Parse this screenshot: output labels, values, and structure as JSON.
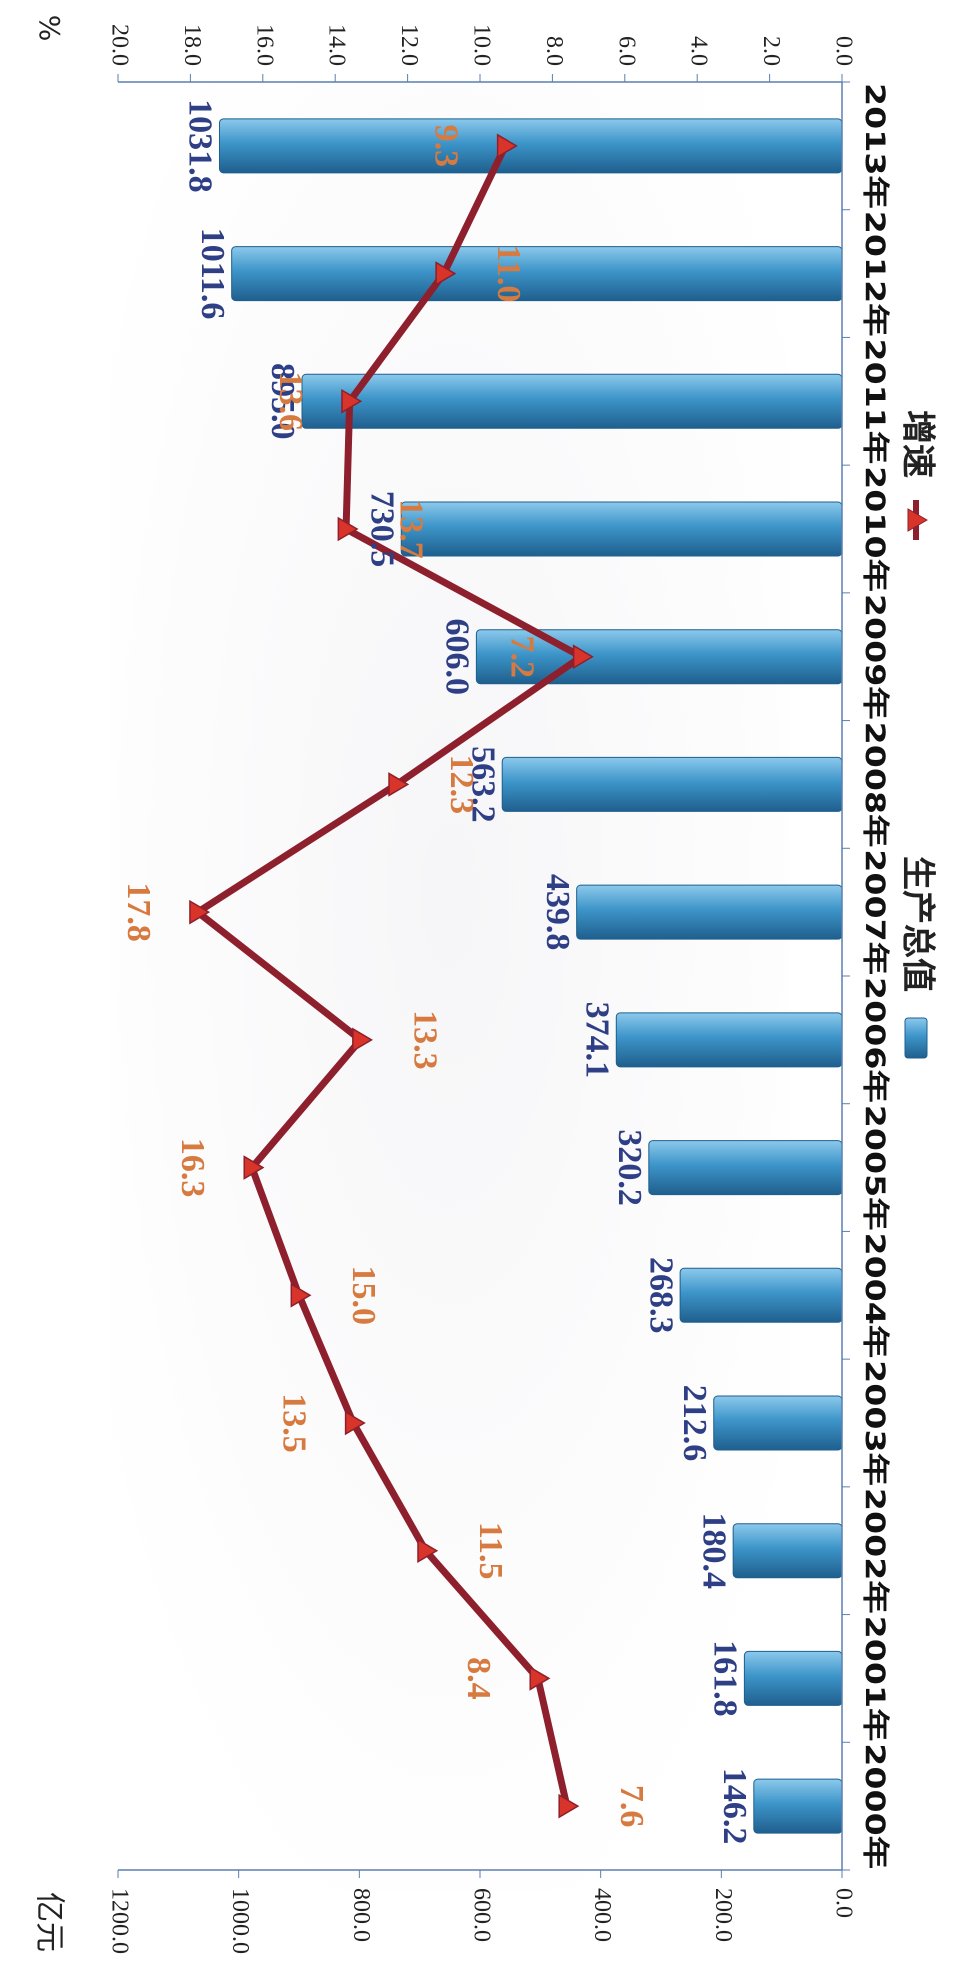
{
  "chart_data": {
    "type": "bar+line",
    "orientation": "rotated-90-clockwise",
    "categories": [
      "2000年",
      "2001年",
      "2002年",
      "2003年",
      "2004年",
      "2005年",
      "2006年",
      "2007年",
      "2008年",
      "2009年",
      "2010年",
      "2011年",
      "2012年",
      "2013年"
    ],
    "series": [
      {
        "name": "生产总值",
        "type": "bar",
        "axis": "left",
        "values": [
          146.2,
          161.8,
          180.4,
          212.6,
          268.3,
          320.2,
          374.1,
          439.8,
          563.2,
          606.0,
          730.5,
          895.0,
          1011.6,
          1031.8
        ],
        "labels": [
          "146.2",
          "161.8",
          "180.4",
          "212.6",
          "268.3",
          "320.2",
          "374.1",
          "439.8",
          "563.2",
          "606.0",
          "730.5",
          "895.0",
          "1011.6",
          "1031.8"
        ]
      },
      {
        "name": "增速",
        "type": "line",
        "axis": "right",
        "values": [
          7.6,
          8.4,
          11.5,
          13.5,
          15.0,
          16.3,
          13.3,
          17.8,
          12.3,
          7.2,
          13.7,
          13.6,
          11.0,
          9.3
        ],
        "labels": [
          "7.6",
          "8.4",
          "11.5",
          "13.5",
          "15.0",
          "16.3",
          "13.3",
          "17.8",
          "12.3",
          "7.2",
          "13.7",
          "13.6",
          "11.0",
          "9.3"
        ]
      }
    ],
    "left_axis": {
      "unit": "亿元",
      "ylim": [
        0,
        1200
      ],
      "ticks": [
        "0.0",
        "200.0",
        "400.0",
        "600.0",
        "800.0",
        "1000.0",
        "1200.0"
      ]
    },
    "right_axis": {
      "unit": "%",
      "ylim": [
        0,
        20
      ],
      "ticks": [
        "0.0",
        "2.0",
        "4.0",
        "6.0",
        "8.0",
        "10.0",
        "12.0",
        "14.0",
        "16.0",
        "18.0",
        "20.0"
      ]
    },
    "legend_position": "bottom",
    "colors": {
      "bar": "#3c93c7",
      "bar_dark": "#1e5f8c",
      "bar_label": "#2e3f86",
      "line": "#8e1f2c",
      "marker": "#d8342a",
      "line_label": "#d77a3f"
    }
  }
}
